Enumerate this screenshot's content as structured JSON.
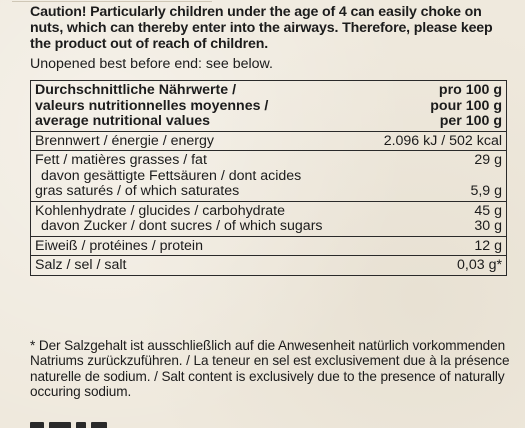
{
  "caution": "Caution! Particularly children under the age of 4 can easily choke on nuts, which can thereby enter into the airways. Therefore, please keep the product out of reach of children.",
  "best_before": "Unopened best before end: see below.",
  "table": {
    "header": {
      "label_lines": [
        "Durchschnittliche Nährwerte /",
        "valeurs nutritionnelles moyennes /",
        "average nutritional values"
      ],
      "value_lines": [
        "pro 100 g",
        "pour 100 g",
        "per 100 g"
      ]
    },
    "energy": {
      "label": "Brennwert / énergie / energy",
      "value": "2.096 kJ / 502 kcal"
    },
    "fat": {
      "label": "Fett / matières grasses / fat",
      "value": "29 g",
      "sub_label_lines": [
        "davon gesättigte Fettsäuren / dont acides",
        "gras saturés / of which saturates"
      ],
      "sub_value": "5,9 g"
    },
    "carbs": {
      "label": "Kohlenhydrate / glucides / carbohydrate",
      "value": "45 g",
      "sub_label": "davon Zucker / dont sucres / of which sugars",
      "sub_value": "30 g"
    },
    "protein": {
      "label": "Eiweiß / protéines / protein",
      "value": "12 g"
    },
    "salt": {
      "label": "Salz / sel / salt",
      "value": "0,03 g*"
    }
  },
  "footnote": "* Der Salzgehalt ist ausschließlich auf die Anwesenheit natürlich vorkommenden Natriums zurückzuführen. / La teneur en sel est exclusivement due à la présence naturelle de sodium. / Salt content is exclusively due to the presence of naturally occuring sodium."
}
